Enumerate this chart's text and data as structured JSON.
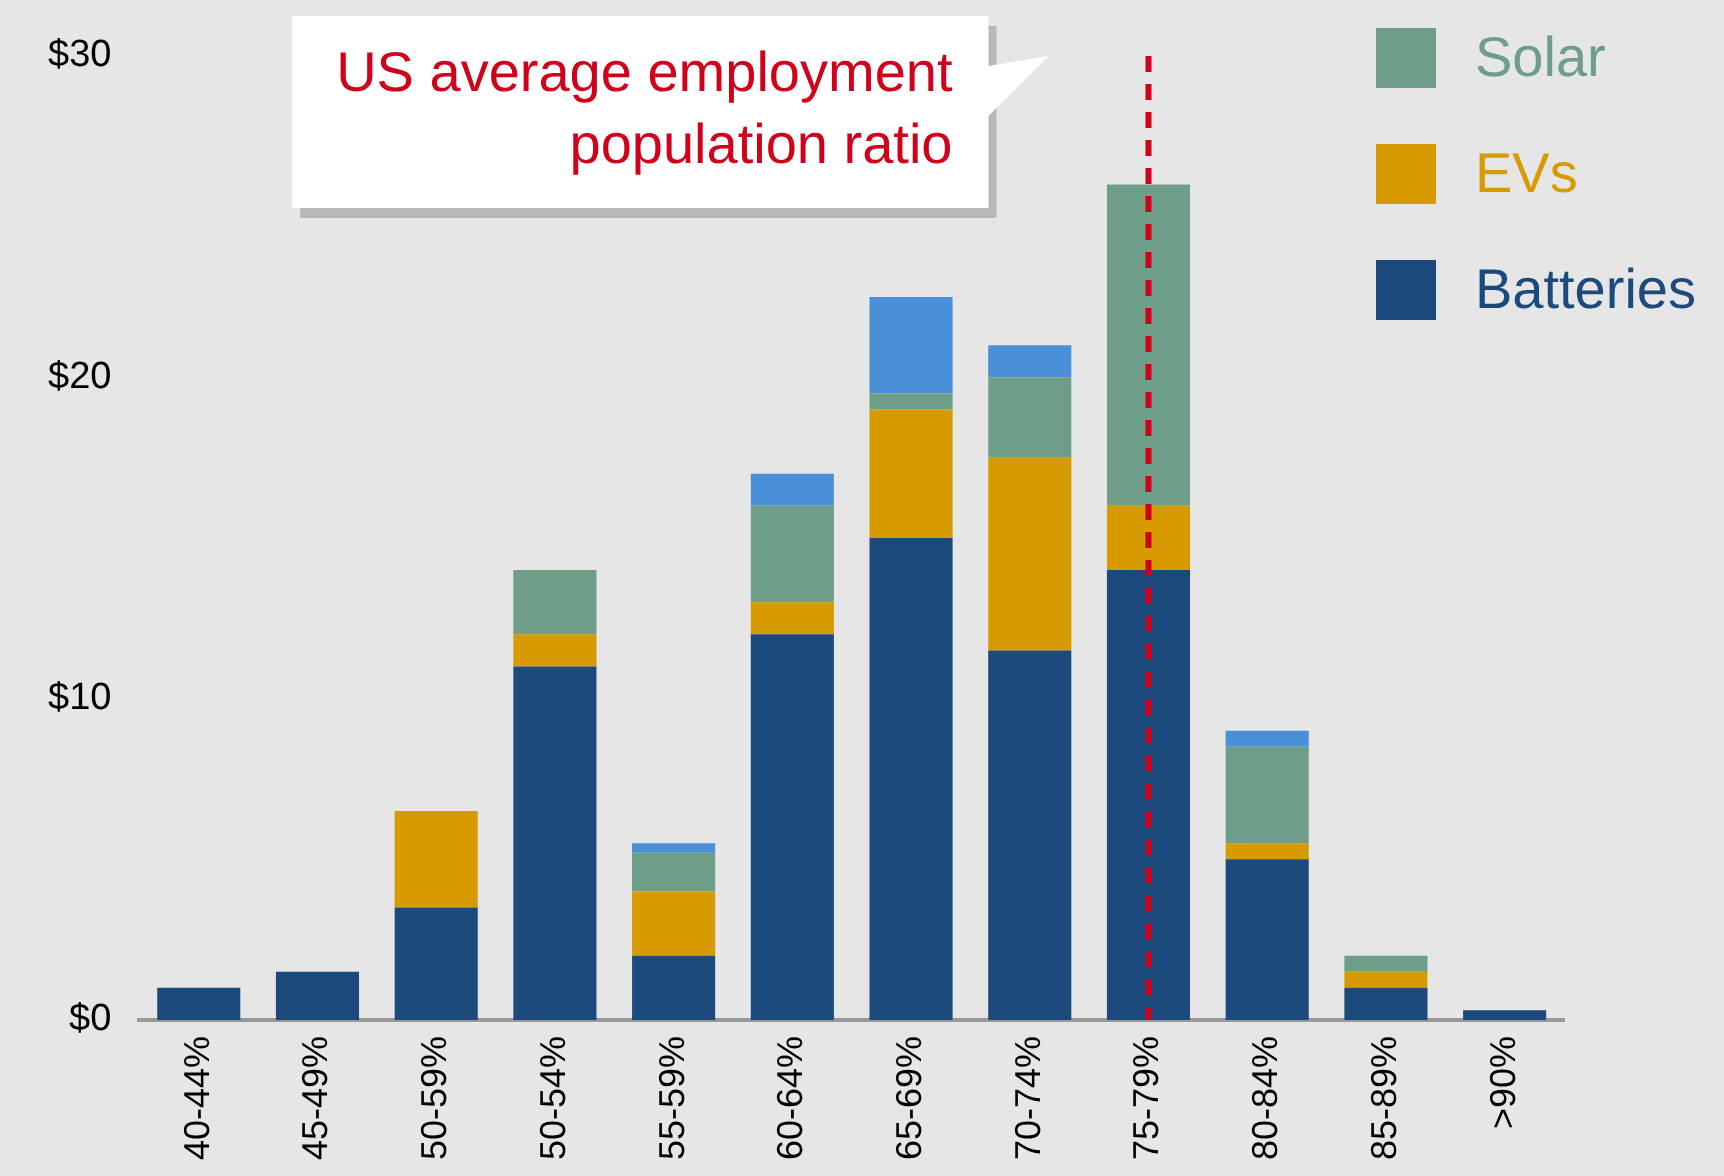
{
  "chart_data": {
    "type": "bar",
    "stacked": true,
    "categories": [
      "40-44%",
      "45-49%",
      "50-59%",
      "50-54%",
      "55-59%",
      "60-64%",
      "65-69%",
      "70-74%",
      "75-79%",
      "80-84%",
      "85-89%",
      ">90%"
    ],
    "series": [
      {
        "name": "Batteries",
        "color": "#1c4a7c",
        "values": [
          1,
          1.5,
          3.5,
          11,
          2,
          12,
          15,
          11.5,
          14,
          5,
          1,
          0.3
        ]
      },
      {
        "name": "EVs",
        "color": "#d59b00",
        "values": [
          0,
          0,
          3,
          1,
          2,
          1,
          4,
          6,
          2,
          0.5,
          0.5,
          0
        ]
      },
      {
        "name": "Solar",
        "color": "#6e9e88",
        "values": [
          0,
          0,
          0,
          2,
          1.2,
          3,
          0.5,
          2.5,
          10,
          3,
          0.5,
          0
        ]
      },
      {
        "color": "#4a90d9",
        "values": [
          0,
          0,
          0,
          0,
          0.3,
          1,
          3,
          1,
          0,
          0.5,
          0,
          0
        ]
      }
    ],
    "ylim": [
      0,
      30
    ],
    "yticks": [
      {
        "value": 0,
        "label": "$0"
      },
      {
        "value": 10,
        "label": "$10"
      },
      {
        "value": 20,
        "label": "$20"
      },
      {
        "value": 30,
        "label": "$30"
      }
    ],
    "grid": false,
    "legend": "top right",
    "ref_lines": [
      {
        "axis": "x",
        "value": "75-79%",
        "label": "US average employment population ratio",
        "color": "#d0021b",
        "line_style": "dashed"
      }
    ]
  }
}
